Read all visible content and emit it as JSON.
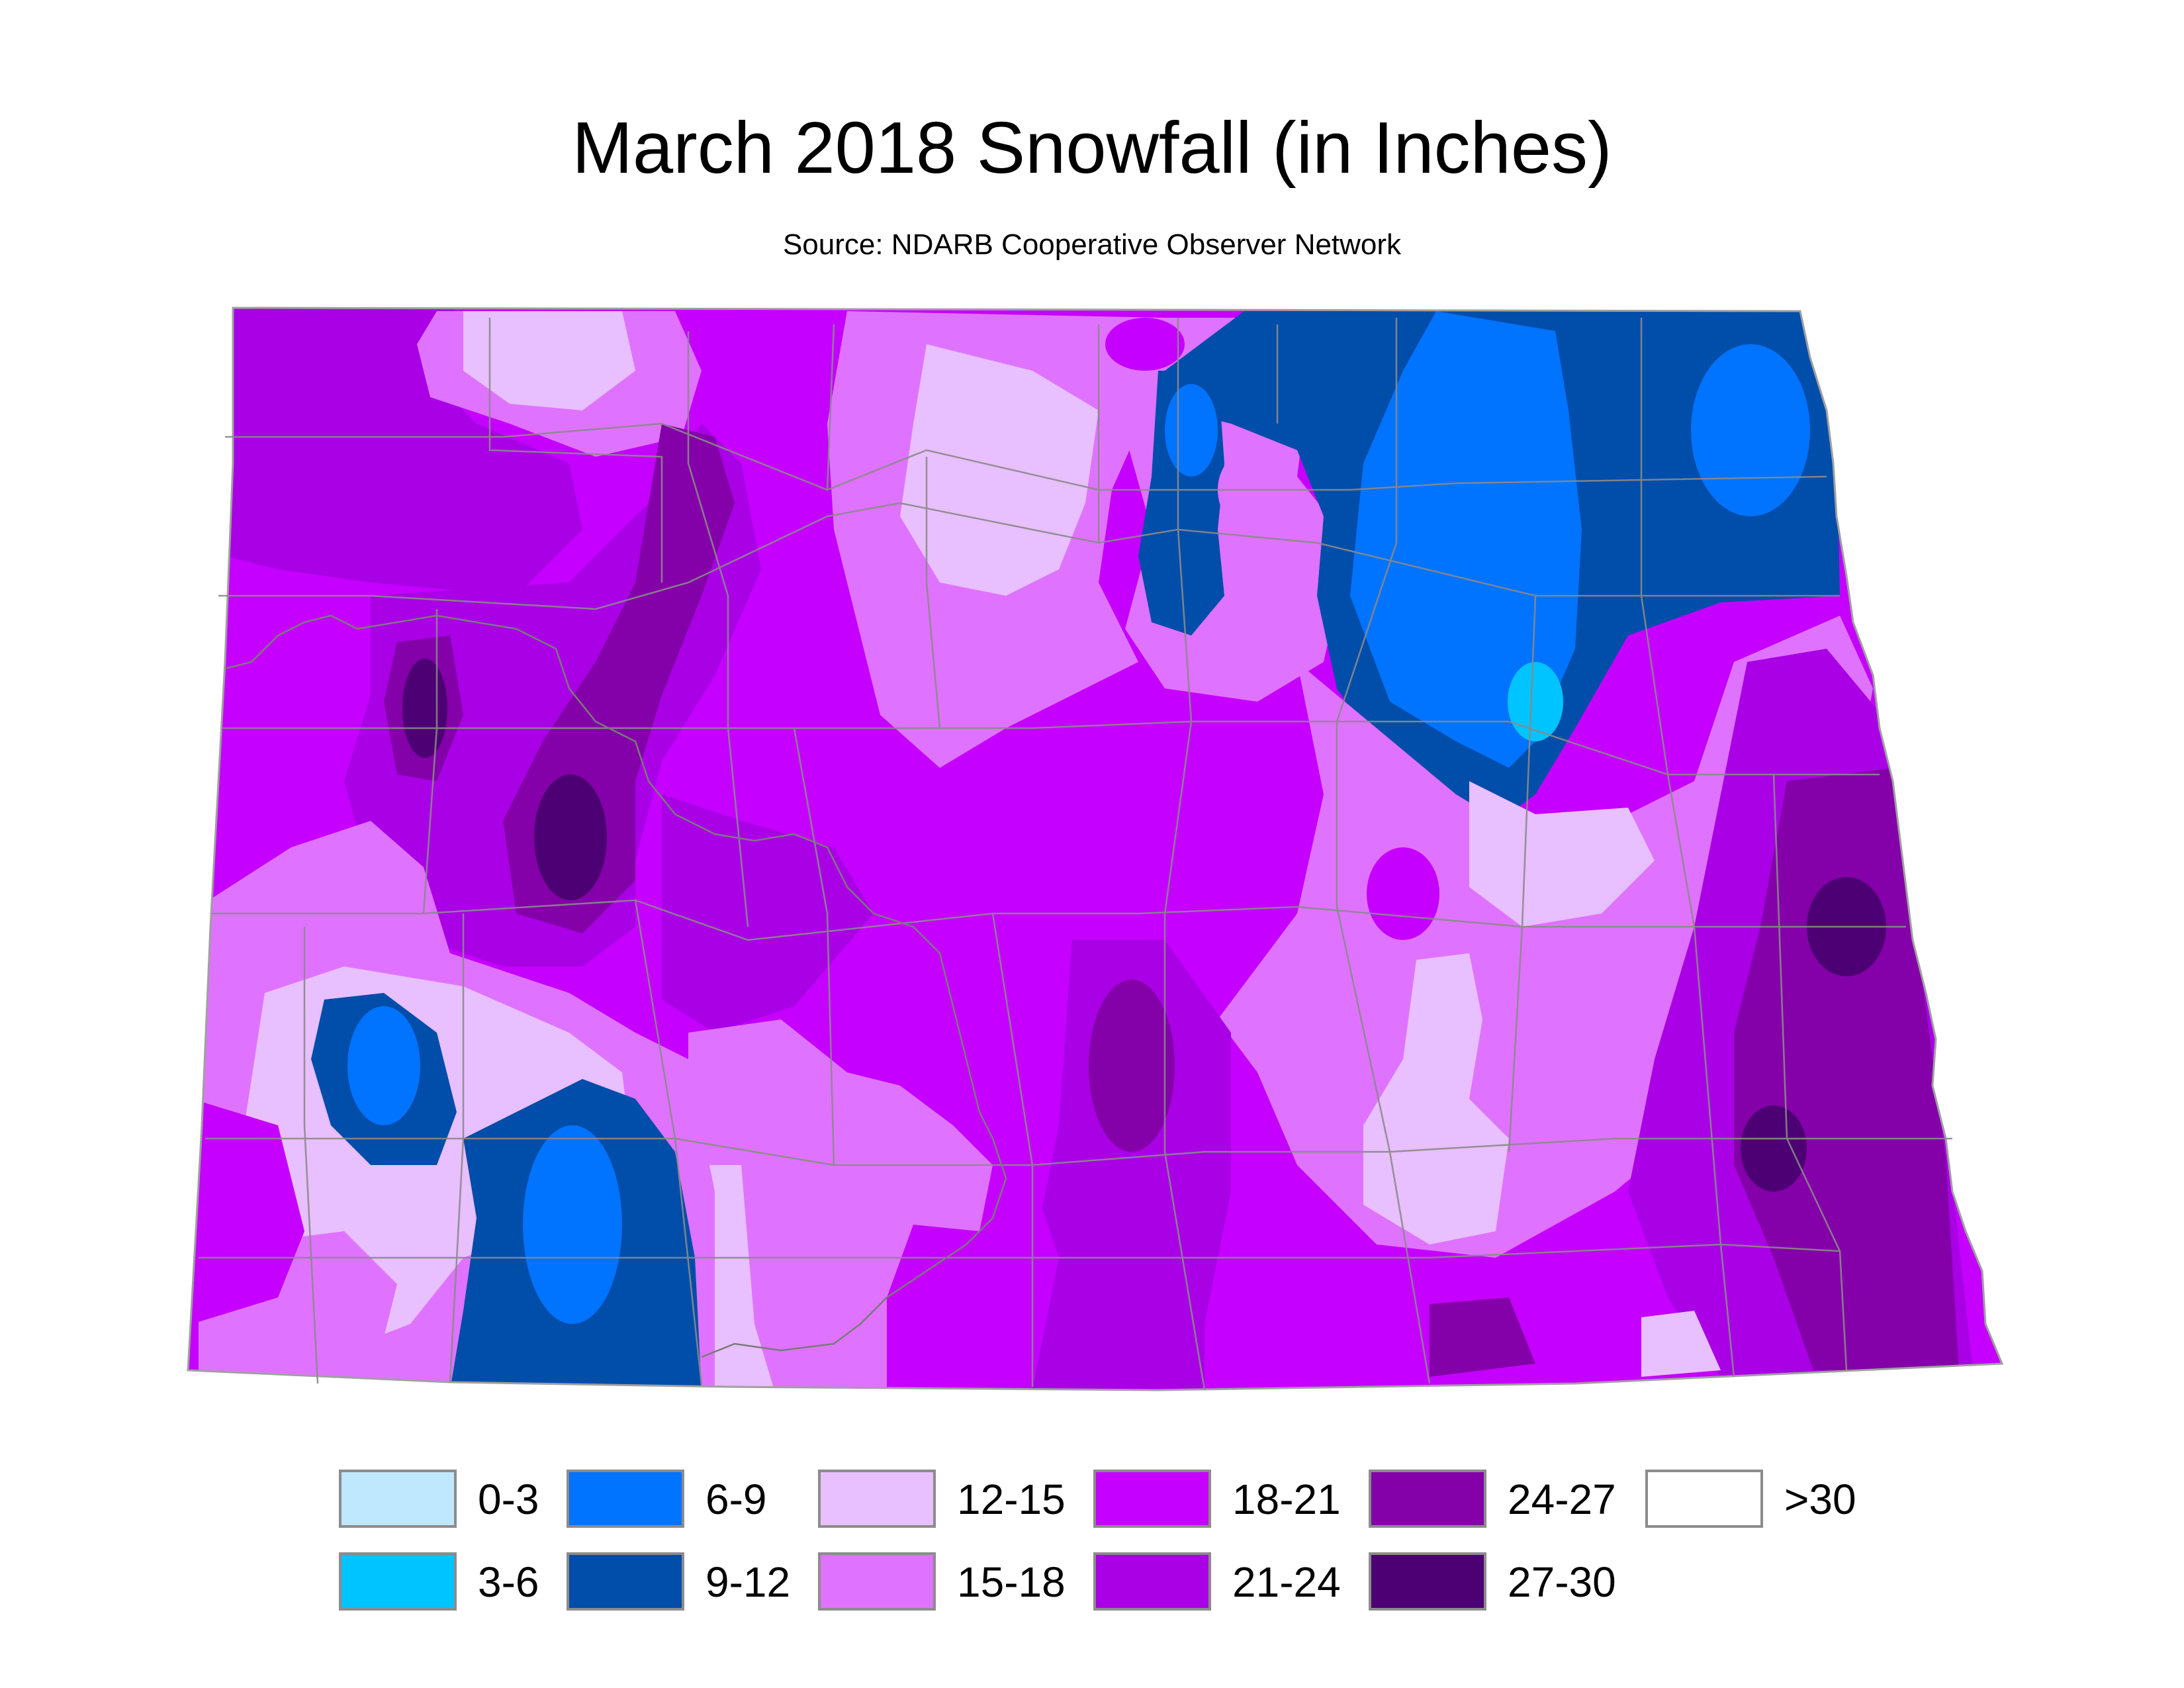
{
  "title": "March 2018 Snowfall (in Inches)",
  "subtitle": "Source: NDARB Cooperative Observer Network",
  "legend": [
    {
      "label": "0-3",
      "color": "#bfe8ff"
    },
    {
      "label": "3-6",
      "color": "#00c4ff"
    },
    {
      "label": "6-9",
      "color": "#0073ff"
    },
    {
      "label": "9-12",
      "color": "#004daa"
    },
    {
      "label": "12-15",
      "color": "#e8bfff"
    },
    {
      "label": "15-18",
      "color": "#df73ff"
    },
    {
      "label": "18-21",
      "color": "#c500ff"
    },
    {
      "label": "21-24",
      "color": "#a900e6"
    },
    {
      "label": "24-27",
      "color": "#8400a8"
    },
    {
      "label": "27-30",
      "color": "#4c0073"
    },
    {
      "label": ">30",
      "color": "#ffffff"
    }
  ]
}
